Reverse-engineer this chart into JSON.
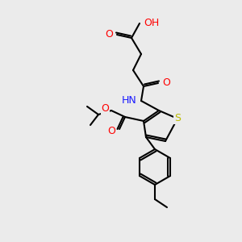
{
  "background_color": "#ebebeb",
  "bond_color": "#000000",
  "colors": {
    "C": "#000000",
    "H": "#4a9e9e",
    "N": "#1a1aff",
    "O": "#ff0000",
    "S": "#bbbb00"
  },
  "lw": 1.5,
  "figsize": [
    3.0,
    3.0
  ],
  "dpi": 100
}
